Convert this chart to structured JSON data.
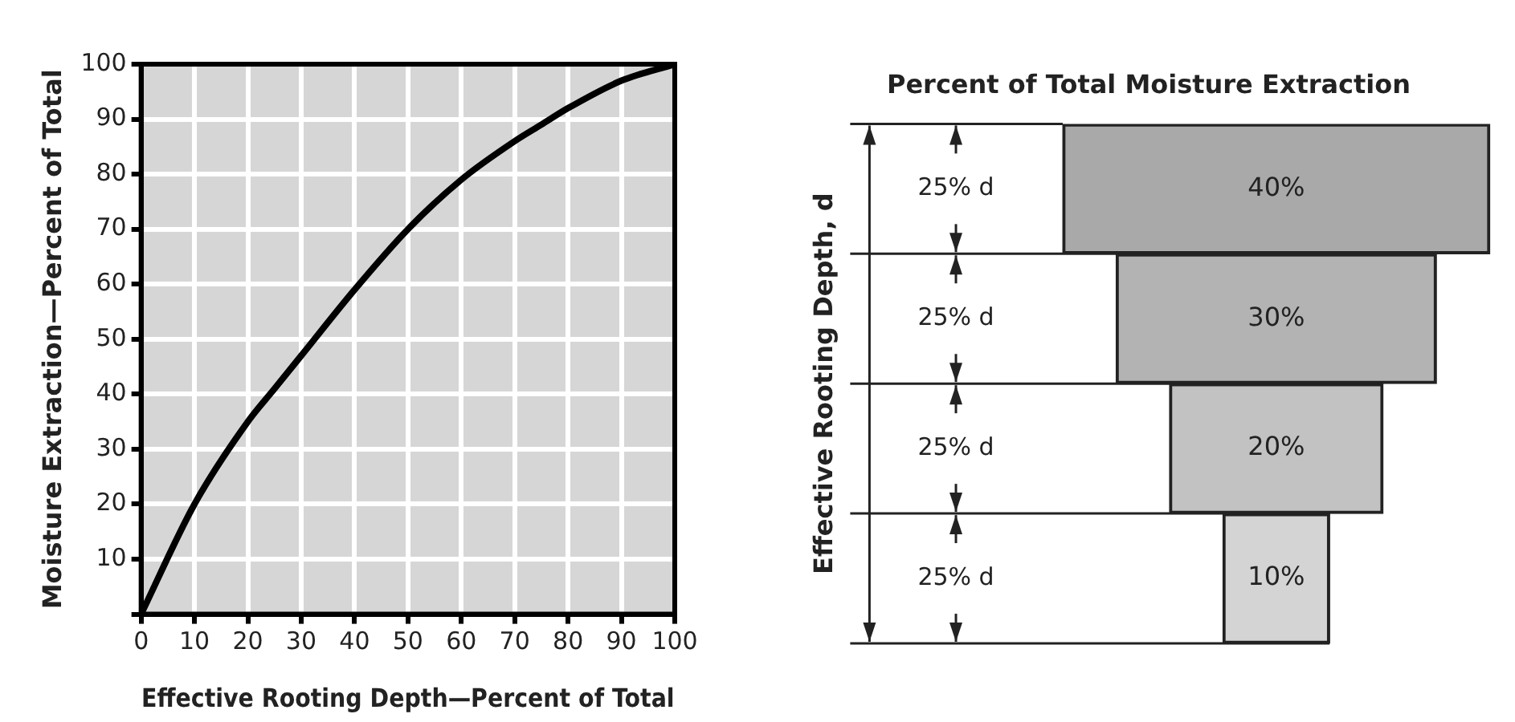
{
  "chart_data": [
    {
      "type": "line",
      "xlabel": "Effective Rooting Depth—Percent of Total",
      "ylabel": "Moisture Extraction—Percent of Total",
      "x": [
        0,
        10,
        20,
        25,
        30,
        40,
        50,
        60,
        70,
        75,
        80,
        90,
        100
      ],
      "series": [
        {
          "color": "#000000",
          "values": [
            0,
            20,
            35,
            41,
            47,
            59,
            70,
            79,
            86,
            89,
            92,
            97,
            100
          ]
        }
      ],
      "xlim": [
        0,
        100
      ],
      "ylim": [
        0,
        100
      ],
      "xticks": [
        0,
        10,
        20,
        30,
        40,
        50,
        60,
        70,
        80,
        90,
        100
      ],
      "yticks": [
        {
          "value": 0,
          "label": null
        },
        10,
        20,
        30,
        40,
        50,
        60,
        70,
        80,
        90,
        100
      ],
      "grid": true
    },
    {
      "type": "other",
      "title": "Percent of Total Moisture Extraction",
      "ylabel": "Effective Rooting Depth, d",
      "categories": [
        "25% d",
        "25% d",
        "25% d",
        "25% d"
      ],
      "values": [
        40,
        30,
        20,
        10
      ],
      "value_labels": [
        "40%",
        "30%",
        "20%",
        "10%"
      ],
      "colors": [
        "#a9a9a9",
        "#b3b3b3",
        "#c2c2c2",
        "#d4d4d4"
      ]
    }
  ]
}
